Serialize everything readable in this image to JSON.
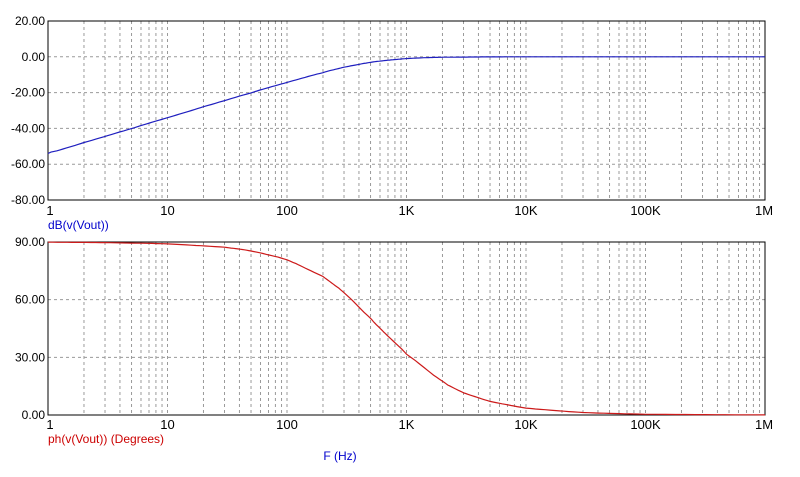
{
  "chart_data": [
    {
      "type": "line",
      "ylabel": "dB(v(Vout))",
      "xscale": "log",
      "xlim": [
        1,
        1000000
      ],
      "ylim": [
        -80,
        20
      ],
      "yticks": [
        "20.00",
        "0.00",
        "-20.00",
        "-40.00",
        "-60.00",
        "-80.00"
      ],
      "xticks": [
        "1",
        "10",
        "100",
        "1K",
        "10K",
        "100K",
        "1M"
      ],
      "grid": true,
      "color": "#1f1fbf",
      "series": [
        {
          "x": [
            1,
            2,
            5,
            10,
            20,
            50,
            100,
            200,
            300,
            500,
            700,
            1000,
            1500,
            2000,
            5000,
            10000,
            100000,
            1000000
          ],
          "values": [
            -54,
            -48,
            -40,
            -34,
            -28,
            -20,
            -14.3,
            -8.7,
            -5.8,
            -3.0,
            -1.9,
            -0.95,
            -0.43,
            -0.25,
            -0.04,
            -0.01,
            0,
            0
          ]
        }
      ]
    },
    {
      "type": "line",
      "ylabel": "ph(v(Vout)) (Degrees)",
      "xlabel": "F (Hz)",
      "xscale": "log",
      "xlim": [
        1,
        1000000
      ],
      "ylim": [
        0,
        90
      ],
      "yticks": [
        "90.00",
        "60.00",
        "30.00",
        "0.00"
      ],
      "xticks": [
        "1",
        "10",
        "100",
        "1K",
        "10K",
        "100K",
        "1M"
      ],
      "grid": true,
      "color": "#cc1a1a",
      "series": [
        {
          "x": [
            1,
            3,
            10,
            30,
            50,
            100,
            200,
            300,
            500,
            700,
            1000,
            2000,
            3000,
            5000,
            10000,
            30000,
            100000,
            1000000
          ],
          "values": [
            89.9,
            89.7,
            89.1,
            87.3,
            85.5,
            81.0,
            72.0,
            64.0,
            50.0,
            41.0,
            32.0,
            17.0,
            11.5,
            7.0,
            3.5,
            1.2,
            0.35,
            0.04
          ]
        }
      ]
    }
  ]
}
